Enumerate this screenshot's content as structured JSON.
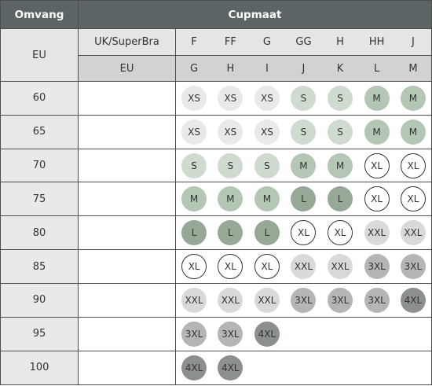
{
  "header": {
    "omvang": "Omvang",
    "cupmaat": "Cupmaat",
    "eu_left": "EU",
    "uk_label": "UK/SuperBra",
    "eu_label": "EU"
  },
  "uk_cups": [
    "F",
    "FF",
    "G",
    "GG",
    "H",
    "HH",
    "J"
  ],
  "eu_cups": [
    "G",
    "H",
    "I",
    "J",
    "K",
    "L",
    "M"
  ],
  "rows": [
    {
      "band": "60",
      "sizes": [
        "XS",
        "XS",
        "XS",
        "S",
        "S",
        "M",
        "M"
      ]
    },
    {
      "band": "65",
      "sizes": [
        "XS",
        "XS",
        "XS",
        "S",
        "S",
        "M",
        "M"
      ]
    },
    {
      "band": "70",
      "sizes": [
        "S",
        "S",
        "S",
        "M",
        "M",
        "XL",
        "XL"
      ]
    },
    {
      "band": "75",
      "sizes": [
        "M",
        "M",
        "M",
        "L",
        "L",
        "XL",
        "XL"
      ]
    },
    {
      "band": "80",
      "sizes": [
        "L",
        "L",
        "L",
        "XL",
        "XL",
        "XXL",
        "XXL"
      ]
    },
    {
      "band": "85",
      "sizes": [
        "XL",
        "XL",
        "XL",
        "XXL",
        "XXL",
        "3XL",
        "3XL"
      ]
    },
    {
      "band": "90",
      "sizes": [
        "XXL",
        "XXL",
        "XXL",
        "3XL",
        "3XL",
        "3XL",
        "4XL"
      ]
    },
    {
      "band": "95",
      "sizes": [
        "3XL",
        "3XL",
        "4XL",
        "",
        "",
        "",
        ""
      ]
    },
    {
      "band": "100",
      "sizes": [
        "4XL",
        "4XL",
        "",
        "",
        "",
        "",
        ""
      ]
    }
  ],
  "size_colors": {
    "XS": {
      "fill": "#e8e9e9",
      "border": "none"
    },
    "S": {
      "fill": "#cfdbcf",
      "border": "none"
    },
    "M": {
      "fill": "#b4c6b4",
      "border": "none"
    },
    "L": {
      "fill": "#97a897",
      "border": "none"
    },
    "XL": {
      "fill": "#ffffff",
      "border": "#333333"
    },
    "XXL": {
      "fill": "#d8d9da",
      "border": "none"
    },
    "3XL": {
      "fill": "#b3b5b6",
      "border": "none"
    },
    "4XL": {
      "fill": "#8c8f90",
      "border": "none"
    }
  }
}
